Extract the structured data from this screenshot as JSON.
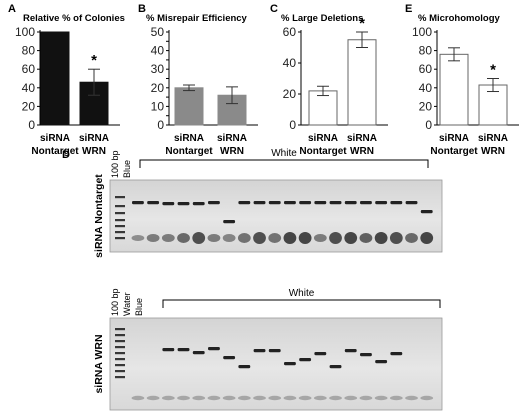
{
  "figure": {
    "gel_section_label": "D",
    "gel1": {
      "row_label": "siRNA Nontarget",
      "lane_labels": [
        "100 bp",
        "Blue"
      ],
      "bracket_label": "White",
      "lane_count": 20
    },
    "gel2": {
      "row_label": "siRNA WRN",
      "lane_labels": [
        "100 bp",
        "Water",
        "Blue"
      ],
      "bracket_label": "White",
      "lane_count": 20
    }
  },
  "chart_data": [
    {
      "panel": "A",
      "type": "bar",
      "title": "Relative % of Colonies",
      "categories": [
        [
          "siRNA",
          "Nontarget"
        ],
        [
          "siRNA",
          "WRN"
        ]
      ],
      "values": [
        100,
        46
      ],
      "errors": [
        0,
        14
      ],
      "significance": [
        false,
        true
      ],
      "ylim": [
        0,
        100
      ],
      "yticks": [
        0,
        20,
        40,
        60,
        80,
        100
      ],
      "bar_color": "#111111"
    },
    {
      "panel": "B",
      "type": "bar",
      "title": "% Misrepair  Efficiency",
      "categories": [
        [
          "siRNA",
          "Nontarget"
        ],
        [
          "siRNA",
          "WRN"
        ]
      ],
      "values": [
        20,
        16
      ],
      "errors": [
        1.5,
        4.5
      ],
      "significance": [
        false,
        false
      ],
      "ylim": [
        0,
        50
      ],
      "yticks": [
        0,
        5,
        10,
        15,
        20,
        25,
        30,
        35,
        40,
        45,
        50
      ],
      "bar_color": "#8a8a8a"
    },
    {
      "panel": "C",
      "type": "bar",
      "title": "% Large Deletions",
      "categories": [
        [
          "siRNA",
          "Nontarget"
        ],
        [
          "siRNA",
          "WRN"
        ]
      ],
      "values": [
        22,
        55
      ],
      "errors": [
        3,
        5
      ],
      "significance": [
        false,
        true
      ],
      "ylim": [
        0,
        60
      ],
      "yticks": [
        0,
        20,
        40,
        60
      ],
      "bar_color": "#ffffff"
    },
    {
      "panel": "E",
      "type": "bar",
      "title": "% Microhomology",
      "categories": [
        [
          "siRNA",
          "Nontarget"
        ],
        [
          "siRNA",
          "WRN"
        ]
      ],
      "values": [
        76,
        43
      ],
      "errors": [
        7,
        7
      ],
      "significance": [
        false,
        true
      ],
      "ylim": [
        0,
        100
      ],
      "yticks": [
        0,
        20,
        40,
        60,
        80,
        100
      ],
      "bar_color": "#ffffff"
    }
  ]
}
